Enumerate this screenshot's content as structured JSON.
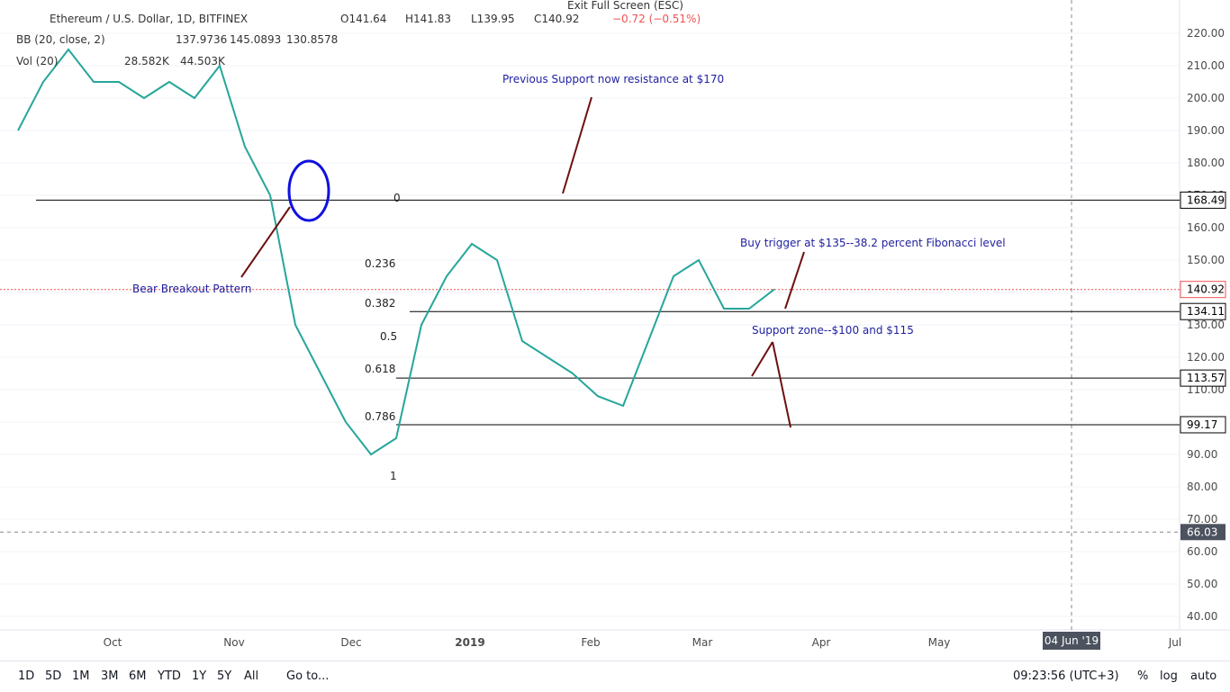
{
  "header": {
    "symbol": "Ethereum / U.S. Dollar, 1D, BITFINEX",
    "open": "O141.64",
    "high": "H141.83",
    "low": "L139.95",
    "close": "C140.92",
    "change": "−0.72 (−0.51%)",
    "bb": "BB (20, close, 2)",
    "bb_values": [
      "137.9736",
      "145.0893",
      "130.8578"
    ],
    "vol": "Vol (20)",
    "vol_values": [
      "28.582K",
      "44.503K"
    ],
    "exit": "Exit Full Screen (ESC)"
  },
  "chart_data": {
    "type": "line",
    "series": [
      {
        "name": "Close",
        "color": "#26a69a",
        "values": [
          190,
          205,
          215,
          205,
          205,
          200,
          205,
          200,
          210,
          185,
          170,
          130,
          115,
          100,
          90,
          95,
          130,
          145,
          155,
          150,
          125,
          120,
          115,
          108,
          105,
          125,
          145,
          150,
          135,
          135,
          141
        ]
      }
    ],
    "ylim": [
      38,
      228
    ],
    "yticks": [
      {
        "value": 220,
        "label": "220.00"
      },
      {
        "value": 210,
        "label": "210.00"
      },
      {
        "value": 200,
        "label": "200.00"
      },
      {
        "value": 190,
        "label": "190.00"
      },
      {
        "value": 180,
        "label": "180.00"
      },
      {
        "value": 170,
        "label": "170.00"
      },
      {
        "value": 160,
        "label": "160.00"
      },
      {
        "value": 150,
        "label": "150.00"
      },
      {
        "value": 140,
        "label": "140.00"
      },
      {
        "value": 130,
        "label": "130.00"
      },
      {
        "value": 120,
        "label": "120.00"
      },
      {
        "value": 110,
        "label": "110.00"
      },
      {
        "value": 100,
        "label": "100.00"
      },
      {
        "value": 90,
        "label": "90.00"
      },
      {
        "value": 80,
        "label": "80.00"
      },
      {
        "value": 70,
        "label": "70.00"
      },
      {
        "value": 60,
        "label": "60.00"
      },
      {
        "value": 50,
        "label": "50.00"
      },
      {
        "value": 40,
        "label": "40.00"
      }
    ],
    "levels": [
      {
        "value": 168.49,
        "label": "168.49"
      },
      {
        "value": 134.11,
        "label": "134.11"
      },
      {
        "value": 113.57,
        "label": "113.57"
      },
      {
        "value": 99.17,
        "label": "99.17"
      }
    ],
    "last": {
      "value": 140.92,
      "label": "140.92"
    },
    "crosshair": {
      "value": 66.03,
      "label": "66.03"
    },
    "xlabels": [
      "Oct",
      "Nov",
      "Dec",
      "2019",
      "Feb",
      "Mar",
      "Apr",
      "May",
      "04 Jun '19",
      "Jul"
    ]
  },
  "fib": [
    "0",
    "0.236",
    "0.382",
    "0.5",
    "0.618",
    "0.786",
    "1"
  ],
  "annotations": [
    "Previous Support now resistance at $170",
    "Bear Breakout Pattern",
    "Buy trigger at $135--38.2 percent Fibonacci level",
    "Support zone--$100 and $115"
  ],
  "toolbar": {
    "ranges": [
      "1D",
      "5D",
      "1M",
      "3M",
      "6M",
      "YTD",
      "1Y",
      "5Y",
      "All"
    ],
    "goto": "Go to...",
    "time": "09:23:56 (UTC+3)",
    "options": [
      "%",
      "log",
      "auto"
    ]
  }
}
